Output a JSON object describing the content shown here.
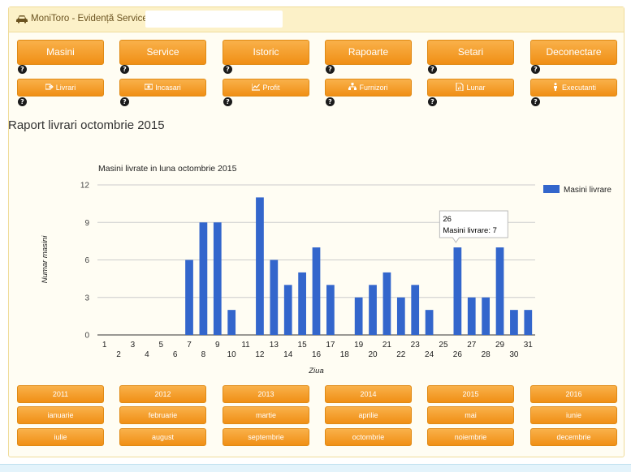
{
  "app": {
    "title": "MoniToro - Evidență Service -",
    "title_field_value": ""
  },
  "nav": {
    "main": [
      {
        "id": "masini",
        "label": "Masini"
      },
      {
        "id": "service",
        "label": "Service"
      },
      {
        "id": "istoric",
        "label": "Istoric"
      },
      {
        "id": "rapoarte",
        "label": "Rapoarte"
      },
      {
        "id": "setari",
        "label": "Setari"
      },
      {
        "id": "deconectare",
        "label": "Deconectare"
      }
    ],
    "sub": [
      {
        "id": "livrari",
        "label": "Livrari",
        "icon": "export-icon"
      },
      {
        "id": "incasari",
        "label": "Incasari",
        "icon": "money-icon"
      },
      {
        "id": "profit",
        "label": "Profit",
        "icon": "chart-line-icon"
      },
      {
        "id": "furnizori",
        "label": "Furnizori",
        "icon": "sitemap-icon"
      },
      {
        "id": "lunar",
        "label": "Lunar",
        "icon": "file-chart-icon"
      },
      {
        "id": "executanti",
        "label": "Executanti",
        "icon": "person-icon"
      }
    ],
    "help_glyph": "?"
  },
  "report": {
    "title": "Raport livrari octombrie 2015"
  },
  "chart_data": {
    "type": "bar",
    "title": "Masini livrate in luna octombrie 2015",
    "xlabel": "Ziua",
    "ylabel": "Numar masini",
    "ylim": [
      0,
      12
    ],
    "yticks": [
      0,
      3,
      6,
      9,
      12
    ],
    "grid": true,
    "legend_position": "right",
    "bar_color": "#3366cc",
    "categories": [
      "1",
      "2",
      "3",
      "4",
      "5",
      "6",
      "7",
      "8",
      "9",
      "10",
      "11",
      "12",
      "13",
      "14",
      "15",
      "16",
      "17",
      "18",
      "19",
      "20",
      "21",
      "22",
      "23",
      "24",
      "25",
      "26",
      "27",
      "28",
      "29",
      "30",
      "31"
    ],
    "series": [
      {
        "name": "Masini livrare",
        "values": [
          0,
          0,
          0,
          0,
          0,
          0,
          6,
          9,
          9,
          2,
          0,
          11,
          6,
          4,
          5,
          7,
          4,
          0,
          3,
          4,
          5,
          3,
          4,
          2,
          0,
          7,
          3,
          3,
          7,
          2,
          2
        ]
      }
    ],
    "tooltip": {
      "category": "26",
      "text": "Masini livrare: 7"
    }
  },
  "periods": {
    "years": [
      "2011",
      "2012",
      "2013",
      "2014",
      "2015",
      "2016"
    ],
    "months": [
      "ianuarie",
      "februarie",
      "martie",
      "aprilie",
      "mai",
      "iunie",
      "iulie",
      "august",
      "septembrie",
      "octombrie",
      "noiembrie",
      "decembrie"
    ]
  }
}
